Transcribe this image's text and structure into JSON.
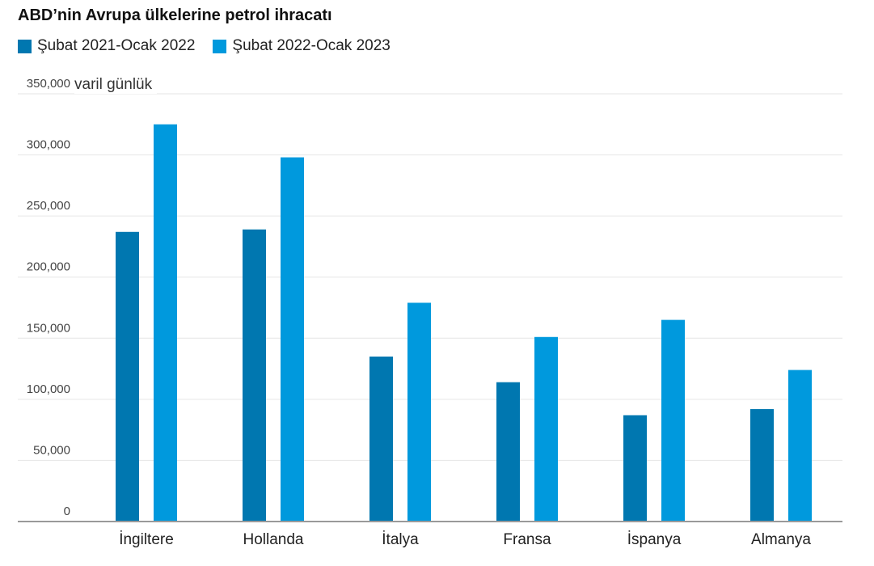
{
  "chart_data": {
    "type": "bar",
    "title": "ABD’nin Avrupa ülkelerine petrol ihracatı",
    "unit_label": "varil günlük",
    "categories": [
      "İngiltere",
      "Hollanda",
      "İtalya",
      "Fransa",
      "İspanya",
      "Almanya"
    ],
    "series": [
      {
        "name": "Şubat 2021-Ocak 2022",
        "color": "#0077b0",
        "values": [
          237000,
          239000,
          135000,
          114000,
          87000,
          92000
        ]
      },
      {
        "name": "Şubat 2022-Ocak 2023",
        "color": "#0099dd",
        "values": [
          325000,
          298000,
          179000,
          151000,
          165000,
          124000
        ]
      }
    ],
    "yticks": [
      0,
      50000,
      100000,
      150000,
      200000,
      250000,
      300000,
      350000
    ],
    "ytick_labels": [
      "0",
      "50,000",
      "100,000",
      "150,000",
      "200,000",
      "250,000",
      "300,000",
      "350,000"
    ],
    "ylim": [
      0,
      350000
    ],
    "grid": true,
    "legend_position": "top-left"
  }
}
